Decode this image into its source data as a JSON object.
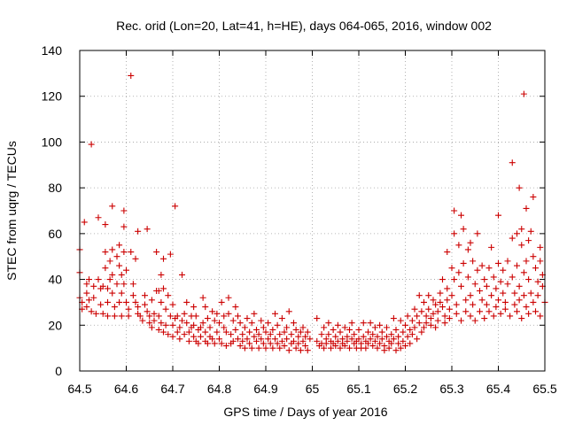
{
  "chart_data": {
    "type": "scatter",
    "title": "Rec. orid (Lon=20, Lat=41, h=HE), days 064-065, 2016, window 002",
    "xlabel": "GPS time / Days of year 2016",
    "ylabel": "STEC from uqrg / TECUs",
    "xlim": [
      64.5,
      65.5
    ],
    "ylim": [
      0,
      140
    ],
    "xticks": [
      "64.5",
      "64.6",
      "64.7",
      "64.8",
      "64.9",
      "65",
      "65.1",
      "65.2",
      "65.3",
      "65.4",
      "65.5"
    ],
    "yticks": [
      "0",
      "20",
      "40",
      "60",
      "80",
      "100",
      "120",
      "140"
    ],
    "grid": true,
    "marker": "+",
    "marker_color": "#cc0000",
    "points": [
      [
        64.5,
        53
      ],
      [
        64.5,
        43
      ],
      [
        64.5,
        32
      ],
      [
        64.505,
        30
      ],
      [
        64.505,
        27
      ],
      [
        64.51,
        65
      ],
      [
        64.515,
        38
      ],
      [
        64.515,
        34
      ],
      [
        64.515,
        28
      ],
      [
        64.52,
        40
      ],
      [
        64.52,
        31
      ],
      [
        64.525,
        99
      ],
      [
        64.525,
        26
      ],
      [
        64.53,
        37
      ],
      [
        64.53,
        32
      ],
      [
        64.535,
        25
      ],
      [
        64.54,
        67
      ],
      [
        64.54,
        40
      ],
      [
        64.545,
        36
      ],
      [
        64.545,
        29
      ],
      [
        64.55,
        37
      ],
      [
        64.55,
        25
      ],
      [
        64.555,
        64
      ],
      [
        64.555,
        52
      ],
      [
        64.555,
        45
      ],
      [
        64.56,
        36
      ],
      [
        64.56,
        30
      ],
      [
        64.56,
        24
      ],
      [
        64.565,
        48
      ],
      [
        64.565,
        40
      ],
      [
        64.57,
        72
      ],
      [
        64.57,
        53
      ],
      [
        64.57,
        42
      ],
      [
        64.57,
        34
      ],
      [
        64.575,
        28
      ],
      [
        64.575,
        24
      ],
      [
        64.58,
        50
      ],
      [
        64.58,
        38
      ],
      [
        64.585,
        55
      ],
      [
        64.585,
        46
      ],
      [
        64.585,
        30
      ],
      [
        64.59,
        42
      ],
      [
        64.59,
        34
      ],
      [
        64.59,
        24
      ],
      [
        64.595,
        70
      ],
      [
        64.595,
        63
      ],
      [
        64.595,
        52
      ],
      [
        64.595,
        38
      ],
      [
        64.6,
        44
      ],
      [
        64.6,
        30
      ],
      [
        64.605,
        27
      ],
      [
        64.605,
        24
      ],
      [
        64.61,
        129
      ],
      [
        64.61,
        52
      ],
      [
        64.615,
        38
      ],
      [
        64.615,
        33
      ],
      [
        64.62,
        49
      ],
      [
        64.62,
        30
      ],
      [
        64.625,
        61
      ],
      [
        64.625,
        28
      ],
      [
        64.625,
        25
      ],
      [
        64.63,
        24
      ],
      [
        64.635,
        22
      ],
      [
        64.64,
        33
      ],
      [
        64.64,
        29
      ],
      [
        64.645,
        62
      ],
      [
        64.645,
        26
      ],
      [
        64.65,
        24
      ],
      [
        64.65,
        21
      ],
      [
        64.655,
        31
      ],
      [
        64.655,
        19
      ],
      [
        64.66,
        25
      ],
      [
        64.66,
        22
      ],
      [
        64.665,
        52
      ],
      [
        64.665,
        35
      ],
      [
        64.67,
        35
      ],
      [
        64.67,
        24
      ],
      [
        64.67,
        18
      ],
      [
        64.675,
        42
      ],
      [
        64.675,
        30
      ],
      [
        64.675,
        21
      ],
      [
        64.68,
        49
      ],
      [
        64.68,
        36
      ],
      [
        64.68,
        17
      ],
      [
        64.685,
        27
      ],
      [
        64.685,
        20
      ],
      [
        64.69,
        33
      ],
      [
        64.69,
        16
      ],
      [
        64.695,
        51
      ],
      [
        64.695,
        24
      ],
      [
        64.7,
        29
      ],
      [
        64.7,
        20
      ],
      [
        64.7,
        15
      ],
      [
        64.705,
        72
      ],
      [
        64.705,
        23
      ],
      [
        64.71,
        24
      ],
      [
        64.71,
        17
      ],
      [
        64.715,
        19
      ],
      [
        64.715,
        14
      ],
      [
        64.72,
        42
      ],
      [
        64.72,
        22
      ],
      [
        64.725,
        25
      ],
      [
        64.725,
        16
      ],
      [
        64.73,
        30
      ],
      [
        64.73,
        21
      ],
      [
        64.735,
        17
      ],
      [
        64.735,
        13
      ],
      [
        64.74,
        24
      ],
      [
        64.74,
        19
      ],
      [
        64.745,
        28
      ],
      [
        64.745,
        20
      ],
      [
        64.745,
        15
      ],
      [
        64.75,
        24
      ],
      [
        64.75,
        13
      ],
      [
        64.755,
        18
      ],
      [
        64.755,
        12
      ],
      [
        64.76,
        19
      ],
      [
        64.76,
        15
      ],
      [
        64.765,
        32
      ],
      [
        64.765,
        21
      ],
      [
        64.77,
        28
      ],
      [
        64.77,
        17
      ],
      [
        64.77,
        13
      ],
      [
        64.775,
        23
      ],
      [
        64.775,
        12
      ],
      [
        64.78,
        19
      ],
      [
        64.78,
        15
      ],
      [
        64.785,
        26
      ],
      [
        64.785,
        14
      ],
      [
        64.79,
        22
      ],
      [
        64.79,
        12
      ],
      [
        64.795,
        25
      ],
      [
        64.795,
        17
      ],
      [
        64.8,
        21
      ],
      [
        64.8,
        14
      ],
      [
        64.805,
        30
      ],
      [
        64.805,
        12
      ],
      [
        64.81,
        24
      ],
      [
        64.81,
        19
      ],
      [
        64.815,
        17
      ],
      [
        64.815,
        11
      ],
      [
        64.82,
        32
      ],
      [
        64.82,
        25
      ],
      [
        64.825,
        16
      ],
      [
        64.825,
        12
      ],
      [
        64.83,
        22
      ],
      [
        64.83,
        13
      ],
      [
        64.835,
        28
      ],
      [
        64.835,
        18
      ],
      [
        64.84,
        24
      ],
      [
        64.84,
        14
      ],
      [
        64.845,
        21
      ],
      [
        64.845,
        11
      ],
      [
        64.85,
        16
      ],
      [
        64.85,
        13
      ],
      [
        64.855,
        19
      ],
      [
        64.855,
        10
      ],
      [
        64.86,
        23
      ],
      [
        64.86,
        14
      ],
      [
        64.865,
        17
      ],
      [
        64.865,
        12
      ],
      [
        64.87,
        21
      ],
      [
        64.87,
        10
      ],
      [
        64.875,
        25
      ],
      [
        64.875,
        15
      ],
      [
        64.88,
        18
      ],
      [
        64.88,
        13
      ],
      [
        64.885,
        16
      ],
      [
        64.885,
        10
      ],
      [
        64.89,
        22
      ],
      [
        64.89,
        14
      ],
      [
        64.895,
        19
      ],
      [
        64.895,
        12
      ],
      [
        64.9,
        17
      ],
      [
        64.9,
        10
      ],
      [
        64.905,
        21
      ],
      [
        64.905,
        14
      ],
      [
        64.91,
        16
      ],
      [
        64.91,
        12
      ],
      [
        64.915,
        18
      ],
      [
        64.915,
        10
      ],
      [
        64.92,
        25
      ],
      [
        64.92,
        14
      ],
      [
        64.925,
        20
      ],
      [
        64.925,
        12
      ],
      [
        64.93,
        16
      ],
      [
        64.93,
        10
      ],
      [
        64.935,
        23
      ],
      [
        64.935,
        13
      ],
      [
        64.94,
        17
      ],
      [
        64.94,
        11
      ],
      [
        64.945,
        19
      ],
      [
        64.945,
        14
      ],
      [
        64.95,
        26
      ],
      [
        64.95,
        9
      ],
      [
        64.955,
        16
      ],
      [
        64.955,
        12
      ],
      [
        64.96,
        21
      ],
      [
        64.96,
        13
      ],
      [
        64.965,
        18
      ],
      [
        64.965,
        10
      ],
      [
        64.97,
        15
      ],
      [
        64.97,
        12
      ],
      [
        64.975,
        17
      ],
      [
        64.975,
        9
      ],
      [
        64.98,
        19
      ],
      [
        64.98,
        13
      ],
      [
        64.985,
        15
      ],
      [
        64.985,
        11
      ],
      [
        64.99,
        17
      ],
      [
        64.99,
        9
      ],
      [
        64.995,
        14
      ],
      [
        65.01,
        23
      ],
      [
        65.01,
        13
      ],
      [
        65.015,
        11
      ],
      [
        65.02,
        16
      ],
      [
        65.02,
        12
      ],
      [
        65.025,
        19
      ],
      [
        65.025,
        10
      ],
      [
        65.03,
        14
      ],
      [
        65.03,
        12
      ],
      [
        65.035,
        21
      ],
      [
        65.035,
        16
      ],
      [
        65.04,
        13
      ],
      [
        65.04,
        10
      ],
      [
        65.045,
        18
      ],
      [
        65.045,
        12
      ],
      [
        65.05,
        15
      ],
      [
        65.05,
        11
      ],
      [
        65.055,
        20
      ],
      [
        65.055,
        13
      ],
      [
        65.06,
        17
      ],
      [
        65.06,
        10
      ],
      [
        65.065,
        14
      ],
      [
        65.065,
        12
      ],
      [
        65.07,
        19
      ],
      [
        65.07,
        11
      ],
      [
        65.075,
        15
      ],
      [
        65.075,
        13
      ],
      [
        65.08,
        18
      ],
      [
        65.08,
        10
      ],
      [
        65.085,
        21
      ],
      [
        65.085,
        14
      ],
      [
        65.09,
        16
      ],
      [
        65.09,
        12
      ],
      [
        65.095,
        13
      ],
      [
        65.095,
        10
      ],
      [
        65.1,
        18
      ],
      [
        65.1,
        14
      ],
      [
        65.105,
        12
      ],
      [
        65.105,
        10
      ],
      [
        65.11,
        21
      ],
      [
        65.11,
        15
      ],
      [
        65.115,
        13
      ],
      [
        65.115,
        10
      ],
      [
        65.12,
        17
      ],
      [
        65.12,
        12
      ],
      [
        65.125,
        21
      ],
      [
        65.125,
        14
      ],
      [
        65.13,
        16
      ],
      [
        65.13,
        11
      ],
      [
        65.135,
        19
      ],
      [
        65.135,
        13
      ],
      [
        65.14,
        15
      ],
      [
        65.14,
        10
      ],
      [
        65.145,
        20
      ],
      [
        65.145,
        12
      ],
      [
        65.15,
        17
      ],
      [
        65.15,
        14
      ],
      [
        65.155,
        11
      ],
      [
        65.155,
        9
      ],
      [
        65.16,
        19
      ],
      [
        65.16,
        15
      ],
      [
        65.165,
        13
      ],
      [
        65.165,
        10
      ],
      [
        65.17,
        16
      ],
      [
        65.17,
        12
      ],
      [
        65.175,
        23
      ],
      [
        65.175,
        14
      ],
      [
        65.18,
        18
      ],
      [
        65.18,
        9
      ],
      [
        65.185,
        15
      ],
      [
        65.185,
        12
      ],
      [
        65.19,
        22
      ],
      [
        65.19,
        10
      ],
      [
        65.195,
        17
      ],
      [
        65.195,
        13
      ],
      [
        65.2,
        20
      ],
      [
        65.2,
        11
      ],
      [
        65.205,
        24
      ],
      [
        65.205,
        15
      ],
      [
        65.21,
        18
      ],
      [
        65.21,
        12
      ],
      [
        65.215,
        22
      ],
      [
        65.215,
        16
      ],
      [
        65.22,
        27
      ],
      [
        65.22,
        19
      ],
      [
        65.225,
        14
      ],
      [
        65.225,
        24
      ],
      [
        65.23,
        33
      ],
      [
        65.23,
        21
      ],
      [
        65.235,
        17
      ],
      [
        65.235,
        26
      ],
      [
        65.24,
        30
      ],
      [
        65.24,
        19
      ],
      [
        65.245,
        24
      ],
      [
        65.245,
        21
      ],
      [
        65.25,
        33
      ],
      [
        65.25,
        27
      ],
      [
        65.255,
        23
      ],
      [
        65.255,
        20
      ],
      [
        65.26,
        31
      ],
      [
        65.26,
        25
      ],
      [
        65.265,
        29
      ],
      [
        65.265,
        19
      ],
      [
        65.27,
        26
      ],
      [
        65.27,
        22
      ],
      [
        65.275,
        34
      ],
      [
        65.275,
        30
      ],
      [
        65.28,
        40
      ],
      [
        65.28,
        28
      ],
      [
        65.285,
        24
      ],
      [
        65.285,
        21
      ],
      [
        65.29,
        52
      ],
      [
        65.29,
        36
      ],
      [
        65.29,
        31
      ],
      [
        65.295,
        27
      ],
      [
        65.295,
        23
      ],
      [
        65.3,
        45
      ],
      [
        65.3,
        33
      ],
      [
        65.305,
        70
      ],
      [
        65.305,
        60
      ],
      [
        65.305,
        40
      ],
      [
        65.31,
        29
      ],
      [
        65.31,
        25
      ],
      [
        65.315,
        55
      ],
      [
        65.315,
        43
      ],
      [
        65.32,
        68
      ],
      [
        65.32,
        37
      ],
      [
        65.32,
        22
      ],
      [
        65.325,
        62
      ],
      [
        65.325,
        47
      ],
      [
        65.33,
        31
      ],
      [
        65.33,
        26
      ],
      [
        65.335,
        53
      ],
      [
        65.335,
        41
      ],
      [
        65.34,
        56
      ],
      [
        65.34,
        33
      ],
      [
        65.34,
        24
      ],
      [
        65.345,
        48
      ],
      [
        65.345,
        29
      ],
      [
        65.35,
        38
      ],
      [
        65.35,
        22
      ],
      [
        65.355,
        60
      ],
      [
        65.355,
        44
      ],
      [
        65.36,
        35
      ],
      [
        65.36,
        26
      ],
      [
        65.365,
        46
      ],
      [
        65.365,
        31
      ],
      [
        65.37,
        40
      ],
      [
        65.37,
        23
      ],
      [
        65.375,
        37
      ],
      [
        65.375,
        29
      ],
      [
        65.38,
        45
      ],
      [
        65.38,
        26
      ],
      [
        65.385,
        54
      ],
      [
        65.385,
        33
      ],
      [
        65.39,
        41
      ],
      [
        65.39,
        24
      ],
      [
        65.395,
        36
      ],
      [
        65.395,
        28
      ],
      [
        65.4,
        68
      ],
      [
        65.4,
        47
      ],
      [
        65.4,
        31
      ],
      [
        65.405,
        39
      ],
      [
        65.405,
        25
      ],
      [
        65.41,
        44
      ],
      [
        65.41,
        34
      ],
      [
        65.415,
        30
      ],
      [
        65.415,
        27
      ],
      [
        65.42,
        48
      ],
      [
        65.42,
        38
      ],
      [
        65.425,
        24
      ],
      [
        65.43,
        91
      ],
      [
        65.43,
        58
      ],
      [
        65.43,
        41
      ],
      [
        65.435,
        34
      ],
      [
        65.435,
        29
      ],
      [
        65.44,
        60
      ],
      [
        65.44,
        46
      ],
      [
        65.44,
        26
      ],
      [
        65.445,
        80
      ],
      [
        65.445,
        37
      ],
      [
        65.445,
        31
      ],
      [
        65.45,
        62
      ],
      [
        65.45,
        55
      ],
      [
        65.45,
        23
      ],
      [
        65.455,
        121
      ],
      [
        65.455,
        43
      ],
      [
        65.455,
        33
      ],
      [
        65.46,
        71
      ],
      [
        65.46,
        48
      ],
      [
        65.46,
        28
      ],
      [
        65.465,
        57
      ],
      [
        65.465,
        40
      ],
      [
        65.465,
        25
      ],
      [
        65.47,
        61
      ],
      [
        65.47,
        34
      ],
      [
        65.475,
        76
      ],
      [
        65.475,
        50
      ],
      [
        65.475,
        30
      ],
      [
        65.48,
        45
      ],
      [
        65.48,
        26
      ],
      [
        65.485,
        39
      ],
      [
        65.485,
        33
      ],
      [
        65.49,
        54
      ],
      [
        65.49,
        48
      ],
      [
        65.49,
        24
      ],
      [
        65.495,
        42
      ],
      [
        65.495,
        37
      ],
      [
        65.5,
        30
      ]
    ]
  }
}
